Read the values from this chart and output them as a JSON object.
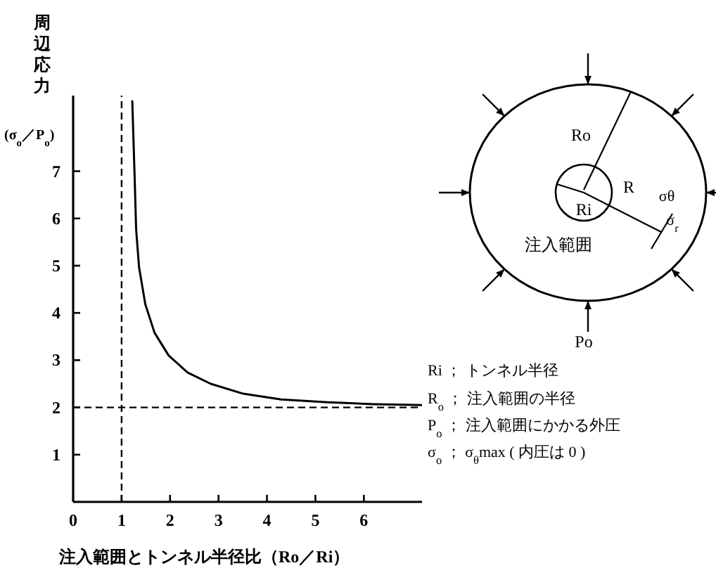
{
  "chart_data": {
    "type": "line",
    "xlabel": "注入範囲とトンネル半径比（Ro／Ri）",
    "ylabel": "周辺応力",
    "xlim": [
      0,
      7.2
    ],
    "ylim": [
      0,
      8.6
    ],
    "xticks": [
      0,
      1,
      2,
      3,
      4,
      5,
      6
    ],
    "yticks": [
      1,
      2,
      3,
      4,
      5,
      6,
      7
    ],
    "series": [
      {
        "color": "#000000",
        "x": [
          1.22,
          1.27,
          1.3,
          1.36,
          1.49,
          1.68,
          1.97,
          2.36,
          2.84,
          3.51,
          4.29,
          5.25,
          6.2,
          7.2
        ],
        "values": [
          8.5,
          6.85,
          5.77,
          4.97,
          4.18,
          3.58,
          3.1,
          2.74,
          2.5,
          2.29,
          2.17,
          2.11,
          2.07,
          2.05
        ]
      }
    ],
    "line_style": "solid",
    "ref_lines": [
      {
        "axis": "x",
        "value": 1,
        "line_style": "dashed",
        "color": "#000000"
      },
      {
        "axis": "y",
        "value": 2,
        "line_style": "dashed",
        "color": "#000000"
      }
    ],
    "annotations": [
      "(σ$_{o}$／P$_{o}$)",
      "Ro",
      "R",
      "σθ",
      "σ$_{r}$",
      "Ri",
      "注入範囲",
      "Po",
      "Ri ； トンネル半径",
      "R$_{o}$ ； 注入範囲の半径",
      "P$_{o}$ ； 注入範囲にかかる外圧",
      "σ$_{o}$ ； σ$_{θ}$max ( 内圧は 0 )"
    ]
  }
}
